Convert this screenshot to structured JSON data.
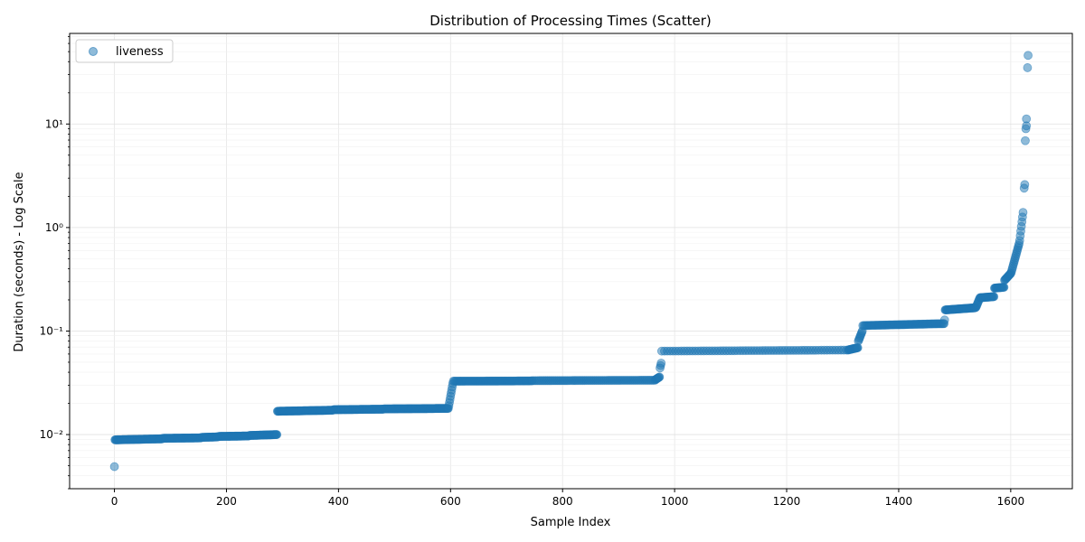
{
  "chart_data": {
    "type": "scatter",
    "title": "Distribution of Processing Times (Scatter)",
    "xlabel": "Sample Index",
    "ylabel": "Duration (seconds) - Log Scale",
    "yscale": "log",
    "xlim": [
      -80,
      1710
    ],
    "ylim": [
      0.003,
      75
    ],
    "xticks": [
      0,
      200,
      400,
      600,
      800,
      1000,
      1200,
      1400,
      1600
    ],
    "xtick_labels": [
      "0",
      "200",
      "400",
      "600",
      "800",
      "1000",
      "1200",
      "1400",
      "1600"
    ],
    "yticks": [
      0.01,
      0.1,
      1,
      10
    ],
    "ytick_labels": [
      "10⁻²",
      "10⁻¹",
      "10⁰",
      "10¹"
    ],
    "grid": true,
    "legend_position": "upper-left",
    "series": [
      {
        "name": "liveness",
        "color": "#1f77b4",
        "opacity": 0.5,
        "segments": [
          {
            "x_start": 0,
            "x_end": 0,
            "y_start": 0.0049,
            "y_end": 0.0049
          },
          {
            "x_start": 1,
            "x_end": 85,
            "y_start": 0.0089,
            "y_end": 0.0091
          },
          {
            "x_start": 86,
            "x_end": 155,
            "y_start": 0.0092,
            "y_end": 0.0093
          },
          {
            "x_start": 156,
            "x_end": 185,
            "y_start": 0.0094,
            "y_end": 0.0095
          },
          {
            "x_start": 186,
            "x_end": 240,
            "y_start": 0.0096,
            "y_end": 0.0097
          },
          {
            "x_start": 241,
            "x_end": 290,
            "y_start": 0.0098,
            "y_end": 0.01
          },
          {
            "x_start": 291,
            "x_end": 390,
            "y_start": 0.0168,
            "y_end": 0.0172
          },
          {
            "x_start": 391,
            "x_end": 480,
            "y_start": 0.0174,
            "y_end": 0.0176
          },
          {
            "x_start": 481,
            "x_end": 596,
            "y_start": 0.0177,
            "y_end": 0.0179
          },
          {
            "x_start": 597,
            "x_end": 604,
            "y_start": 0.019,
            "y_end": 0.031
          },
          {
            "x_start": 605,
            "x_end": 745,
            "y_start": 0.0328,
            "y_end": 0.033
          },
          {
            "x_start": 746,
            "x_end": 965,
            "y_start": 0.0332,
            "y_end": 0.0335
          },
          {
            "x_start": 966,
            "x_end": 973,
            "y_start": 0.034,
            "y_end": 0.036
          },
          {
            "x_start": 974,
            "x_end": 976,
            "y_start": 0.044,
            "y_end": 0.049
          },
          {
            "x_start": 977,
            "x_end": 1310,
            "y_start": 0.064,
            "y_end": 0.0655
          },
          {
            "x_start": 1311,
            "x_end": 1327,
            "y_start": 0.066,
            "y_end": 0.069
          },
          {
            "x_start": 1328,
            "x_end": 1335,
            "y_start": 0.08,
            "y_end": 0.1
          },
          {
            "x_start": 1336,
            "x_end": 1481,
            "y_start": 0.113,
            "y_end": 0.118
          },
          {
            "x_start": 1482,
            "x_end": 1482,
            "y_start": 0.128,
            "y_end": 0.128
          },
          {
            "x_start": 1483,
            "x_end": 1537,
            "y_start": 0.16,
            "y_end": 0.168
          },
          {
            "x_start": 1538,
            "x_end": 1545,
            "y_start": 0.17,
            "y_end": 0.21
          },
          {
            "x_start": 1546,
            "x_end": 1570,
            "y_start": 0.21,
            "y_end": 0.215
          },
          {
            "x_start": 1571,
            "x_end": 1588,
            "y_start": 0.26,
            "y_end": 0.265
          },
          {
            "x_start": 1589,
            "x_end": 1600,
            "y_start": 0.31,
            "y_end": 0.36
          },
          {
            "x_start": 1601,
            "x_end": 1615,
            "y_start": 0.37,
            "y_end": 0.7
          },
          {
            "x_start": 1616,
            "x_end": 1622,
            "y_start": 0.75,
            "y_end": 1.4
          }
        ],
        "points": [
          [
            1624,
            2.4
          ],
          [
            1625,
            2.6
          ],
          [
            1626,
            6.9
          ],
          [
            1627,
            9.0
          ],
          [
            1628,
            9.6
          ],
          [
            1628,
            11.2
          ],
          [
            1630,
            35.0
          ],
          [
            1631,
            46.0
          ]
        ]
      }
    ]
  }
}
